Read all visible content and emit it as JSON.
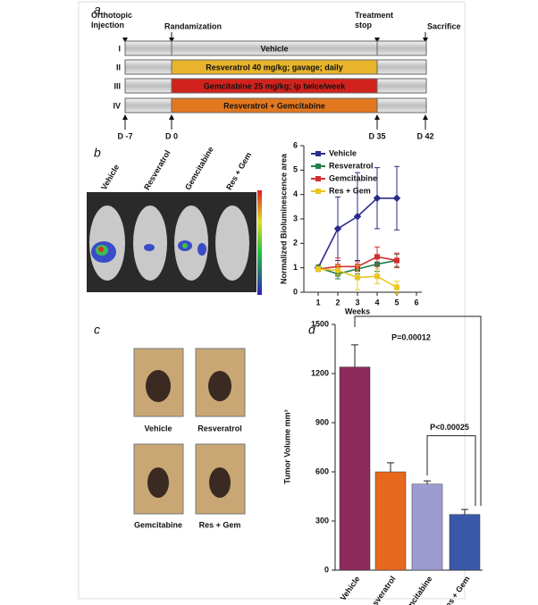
{
  "panel_letters": [
    "a",
    "b",
    "c",
    "d"
  ],
  "timeline": {
    "events": [
      "Orthotopic\nInjection",
      "Randamization",
      "Treatment\nstop",
      "Sacrifice"
    ],
    "days": [
      "D -7",
      "D 0",
      "D 35",
      "D 42"
    ],
    "rows": [
      {
        "numeral": "I",
        "label": "Vehicle",
        "color": "#c8c8c8"
      },
      {
        "numeral": "II",
        "label": "Resveratrol 40 mg/kg; gavage; daily",
        "color": "#e8b42c"
      },
      {
        "numeral": "III",
        "label": "Gemcitabine 25 mg/kg; ip twice/week",
        "color": "#d2221e"
      },
      {
        "numeral": "IV",
        "label": "Resveratrol + Gemcitabine",
        "color": "#e2781e"
      }
    ]
  },
  "imaging": {
    "labels": [
      "Vehicle",
      "Resveratrol",
      "Gemcitabine",
      "Res + Gem"
    ]
  },
  "photos": {
    "labels": [
      "Vehicle",
      "Resveratrol",
      "Gemcitabine",
      "Res + Gem"
    ]
  },
  "chart_data": [
    {
      "type": "line",
      "y_label": "Normalized Bioluminescence area",
      "x_label": "Weeks",
      "x": [
        1,
        2,
        3,
        4,
        5
      ],
      "xlim": [
        0,
        6
      ],
      "xticks": [
        1,
        2,
        3,
        4,
        5,
        6
      ],
      "ylim": [
        0,
        6
      ],
      "yticks": [
        0,
        1,
        2,
        3,
        4,
        5,
        6
      ],
      "legend": "upper left",
      "series": [
        {
          "name": "Vehicle",
          "color": "#2b2b8c",
          "values": [
            1,
            2.6,
            3.1,
            3.85,
            3.85
          ],
          "errors": [
            0.1,
            1.3,
            1.8,
            1.25,
            1.3
          ]
        },
        {
          "name": "Resveratrol",
          "color": "#23804a",
          "values": [
            1,
            0.75,
            0.95,
            1.15,
            1.3
          ],
          "errors": [
            0.1,
            0.2,
            0.2,
            0.3,
            0.25
          ]
        },
        {
          "name": "Gemcitabine",
          "color": "#d03030",
          "values": [
            0.95,
            1.05,
            1.05,
            1.45,
            1.3
          ],
          "errors": [
            0.1,
            0.35,
            0.2,
            0.4,
            0.3
          ]
        },
        {
          "name": "Res + Gem",
          "color": "#e8c820",
          "values": [
            0.95,
            0.9,
            0.6,
            0.65,
            0.2
          ],
          "errors": [
            0.1,
            0.2,
            0.5,
            0.3,
            0.25
          ]
        }
      ]
    },
    {
      "type": "bar",
      "y_label": "Tumor Volume mm³",
      "categories": [
        "Vehicle",
        "Resveratrol",
        "Gemcitabine",
        "Res + Gem"
      ],
      "values": [
        1240,
        600,
        525,
        340
      ],
      "errors": [
        135,
        55,
        20,
        30
      ],
      "colors": [
        "#8c2a5c",
        "#e8681e",
        "#9c9cd2",
        "#3a58a8"
      ],
      "ylim": [
        0,
        1500
      ],
      "yticks": [
        0,
        300,
        600,
        900,
        1200,
        1500
      ],
      "annotations": [
        "P=0.00012",
        "P<0.00025"
      ]
    }
  ]
}
